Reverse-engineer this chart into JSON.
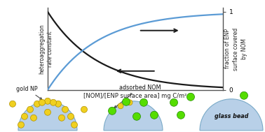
{
  "fig_width": 3.78,
  "fig_height": 1.89,
  "dpi": 100,
  "bg_color": "#ffffff",
  "x_data": [
    0,
    0.05,
    0.1,
    0.15,
    0.2,
    0.3,
    0.4,
    0.5,
    0.6,
    0.7,
    0.8,
    0.9,
    1.0
  ],
  "black_curve_y": [
    1.0,
    0.82,
    0.67,
    0.55,
    0.45,
    0.3,
    0.2,
    0.14,
    0.1,
    0.07,
    0.05,
    0.03,
    0.02
  ],
  "blue_curve_y": [
    0.0,
    0.18,
    0.33,
    0.45,
    0.55,
    0.7,
    0.8,
    0.86,
    0.9,
    0.93,
    0.95,
    0.97,
    0.98
  ],
  "black_curve_color": "#1a1a1a",
  "blue_curve_color": "#5b9bd5",
  "axes_color": "#555555",
  "arrow_color": "#1a1a1a",
  "xlabel": "[NOM]/[ENP surface area] mg C/m²",
  "ylabel_left": "heteroaggregation\nrate constant",
  "ylabel_right": "fraction of ENP\nsurface covered\nby NOM",
  "xlabel_fontsize": 6.0,
  "ylabel_fontsize": 5.5,
  "tick_fontsize": 6.5,
  "sphere_color": "#b8d0e8",
  "sphere_edge_color": "#7aaac8",
  "gold_np_color": "#f0d020",
  "gold_np_edge": "#b09000",
  "green_np_color": "#55dd00",
  "green_np_edge": "#228800",
  "label_gold_np": "gold NP",
  "label_adsorbed": "adsorbed NOM",
  "label_glass": "glass bead",
  "label_fontsize": 5.8
}
